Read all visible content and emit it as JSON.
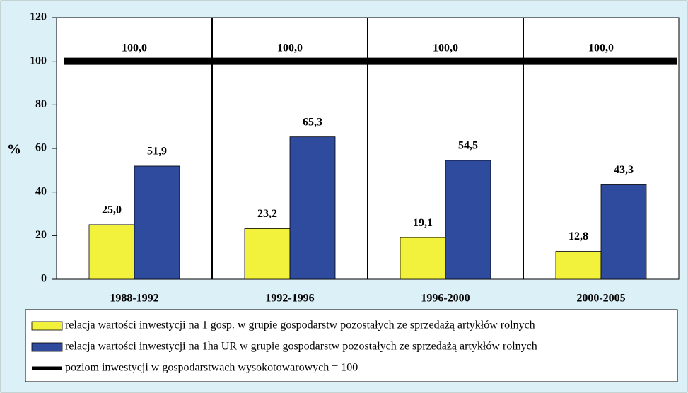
{
  "chart_data": {
    "type": "bar",
    "y_label": "%",
    "categories": [
      "1988-1992",
      "1992-1996",
      "1996-2000",
      "2000-2005"
    ],
    "series": [
      {
        "name": "relacja wartości inwestycji na 1 gosp. w grupie gospodarstw pozostałych ze sprzedażą artykłów rolnych",
        "color": "#f2f23c",
        "values": [
          25,
          23.2,
          19.1,
          12.8
        ],
        "value_labels": [
          "25,0",
          "23,2",
          "19,1",
          "12,8"
        ]
      },
      {
        "name": "relacja wartości inwestycji na 1ha UR w grupie gospodarstw pozostałych ze sprzedażą artykłów rolnych",
        "color": "#2e4b9e",
        "values": [
          51.9,
          65.3,
          54.5,
          43.3
        ],
        "value_labels": [
          "51,9",
          "65,3",
          "54,5",
          "43,3"
        ]
      },
      {
        "name": "poziom inwestycji w gospodarstwach wysokotowarowych = 100",
        "type": "line",
        "color": "#000000",
        "values": [
          100,
          100,
          100,
          100
        ],
        "value_labels": [
          "100,0",
          "100,0",
          "100,0",
          "100,0"
        ]
      }
    ],
    "ylim": [
      0,
      120
    ],
    "yticks": [
      0,
      20,
      40,
      60,
      80,
      100,
      120
    ]
  }
}
